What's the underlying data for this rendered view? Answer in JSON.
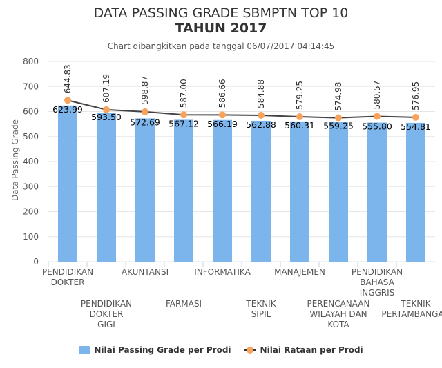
{
  "title_line1": "DATA PASSING GRADE SBMPTN TOP 10",
  "title_line2": "TAHUN 2017",
  "subtitle": "Chart dibangkitkan pada tanggal 06/07/2017 04:14:45",
  "colors": {
    "bar": "#7cb5ec",
    "line": "#434348",
    "marker": "#f7a35c"
  },
  "chart_data": {
    "type": "bar",
    "title": "DATA PASSING GRADE SBMPTN TOP 10 TAHUN 2017",
    "ylabel": "Data Passing Grade",
    "ylim": [
      0,
      800
    ],
    "yticks": [
      "0",
      "100",
      "200",
      "300",
      "400",
      "500",
      "600",
      "700",
      "800"
    ],
    "grid": true,
    "legend_position": "bottom",
    "categories": [
      [
        "PENDIDIKAN",
        "DOKTER"
      ],
      [
        "PENDIDIKAN",
        "DOKTER",
        "GIGI"
      ],
      [
        "AKUNTANSI"
      ],
      [
        "FARMASI"
      ],
      [
        "INFORMATIKA"
      ],
      [
        "TEKNIK",
        "SIPIL"
      ],
      [
        "MANAJEMEN"
      ],
      [
        "PERENCANAAN",
        "WILAYAH DAN",
        "KOTA"
      ],
      [
        "PENDIDIKAN",
        "BAHASA",
        "INGGRIS"
      ],
      [
        "TEKNIK",
        "PERTAMBANGAN"
      ]
    ],
    "series": [
      {
        "name": "Nilai Passing Grade per Prodi",
        "type": "bar",
        "values": [
          623.99,
          593.5,
          572.69,
          567.12,
          566.19,
          562.88,
          560.31,
          559.25,
          555.8,
          554.81
        ],
        "labels": [
          "623.99",
          "593.50",
          "572.69",
          "567.12",
          "566.19",
          "562.88",
          "560.31",
          "559.25",
          "555.80",
          "554.81"
        ]
      },
      {
        "name": "Nilai Rataan per Prodi",
        "type": "line",
        "values": [
          644.83,
          607.19,
          598.87,
          587.0,
          586.66,
          584.88,
          579.25,
          574.98,
          580.57,
          576.95
        ],
        "labels": [
          "644.83",
          "607.19",
          "598.87",
          "587.00",
          "586.66",
          "584.88",
          "579.25",
          "574.98",
          "580.57",
          "576.95"
        ]
      }
    ]
  }
}
